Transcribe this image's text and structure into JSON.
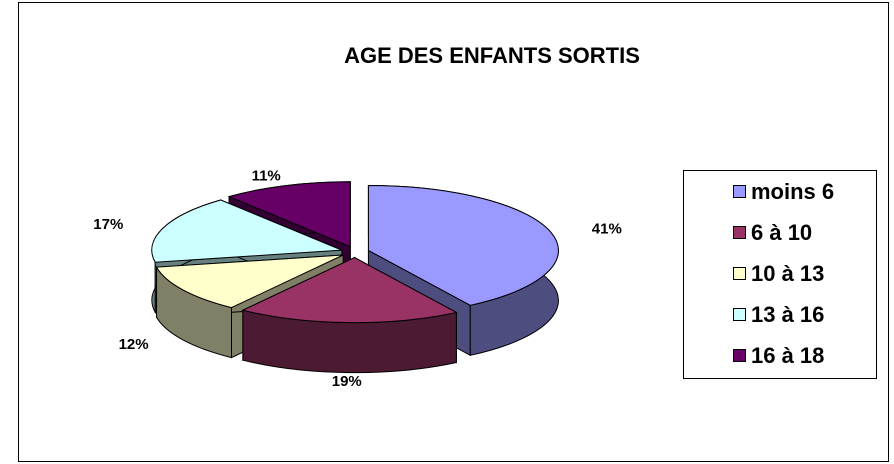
{
  "chart_data": {
    "type": "pie",
    "title": "AGE DES ENFANTS SORTIS",
    "categories": [
      "moins 6",
      "6 à 10",
      "10 à 13",
      "13 à 16",
      "16 à 18"
    ],
    "values": [
      41,
      19,
      12,
      17,
      11
    ],
    "value_labels": [
      "41%",
      "19%",
      "12%",
      "17%",
      "11%"
    ],
    "colors": [
      "#9999ff",
      "#993366",
      "#ffffcc",
      "#ccffff",
      "#660066"
    ],
    "legend": "right"
  }
}
